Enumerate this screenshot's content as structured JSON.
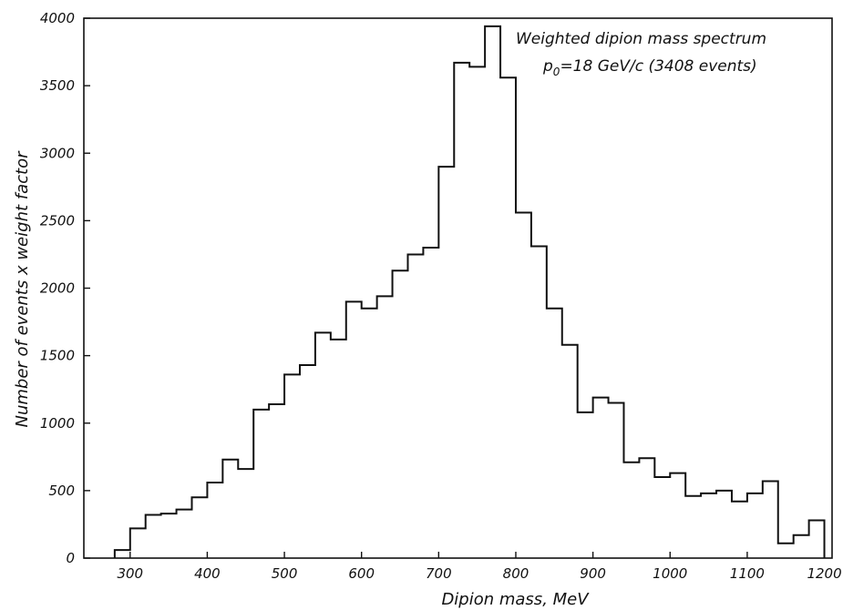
{
  "chart_data": {
    "type": "bar",
    "style": "step-histogram",
    "title": "",
    "xlabel": "Dipion mass, MeV",
    "ylabel": "Number of events x weight factor",
    "xlim": [
      240,
      1210
    ],
    "ylim": [
      0,
      4000
    ],
    "x_ticks": [
      300,
      400,
      500,
      600,
      700,
      800,
      900,
      1000,
      1100,
      1200
    ],
    "y_ticks": [
      0,
      500,
      1000,
      1500,
      2000,
      2500,
      3000,
      3500,
      4000
    ],
    "grid": false,
    "annotation": {
      "line1": "Weighted dipion mass spectrum",
      "line2_prefix": "p",
      "line2_sub": "0",
      "line2_rest": "=18 GeV/c (3408 events)"
    },
    "bins": {
      "edges": [
        280,
        300,
        320,
        340,
        360,
        380,
        400,
        420,
        440,
        460,
        480,
        500,
        520,
        540,
        560,
        580,
        600,
        620,
        640,
        660,
        680,
        700,
        720,
        740,
        760,
        780,
        800,
        820,
        840,
        860,
        880,
        900,
        920,
        940,
        960,
        980,
        1000,
        1020,
        1040,
        1060,
        1080,
        1100,
        1120,
        1140,
        1160,
        1180,
        1200
      ],
      "values": [
        60,
        220,
        320,
        330,
        360,
        450,
        560,
        730,
        660,
        1100,
        1140,
        1360,
        1430,
        1670,
        1620,
        1900,
        1850,
        1940,
        2130,
        2250,
        2300,
        2900,
        3670,
        3640,
        3940,
        3560,
        2560,
        2310,
        1850,
        1580,
        1080,
        1190,
        1150,
        710,
        740,
        600,
        630,
        460,
        480,
        500,
        420,
        480,
        570,
        110,
        170,
        280
      ]
    }
  }
}
